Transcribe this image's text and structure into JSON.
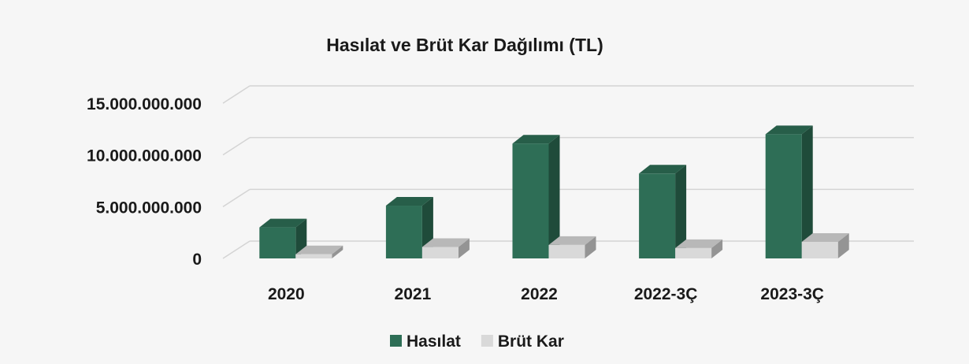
{
  "chart_data": {
    "type": "bar3d",
    "title": "Hasılat ve Brüt Kar Dağılımı (TL)",
    "categories": [
      "2020",
      "2021",
      "2022",
      "2022-3Ç",
      "2023-3Ç"
    ],
    "series": [
      {
        "name": "Hasılat",
        "color": "#2e6e56",
        "values": [
          3000000000,
          5100000000,
          11100000000,
          8200000000,
          12000000000
        ]
      },
      {
        "name": "Brüt Kar",
        "color": "#d9d9d9",
        "values": [
          400000000,
          1100000000,
          1300000000,
          1000000000,
          1600000000
        ]
      }
    ],
    "ylim": [
      0,
      15000000000
    ],
    "yticks": [
      0,
      {
        "value": 5000000000,
        "label": "5.000.000.000"
      },
      {
        "value": 10000000000,
        "label": "10.000.000.000"
      },
      {
        "value": 15000000000,
        "label": "15.000.000.000"
      }
    ],
    "grid": true,
    "legend": "bottom"
  }
}
